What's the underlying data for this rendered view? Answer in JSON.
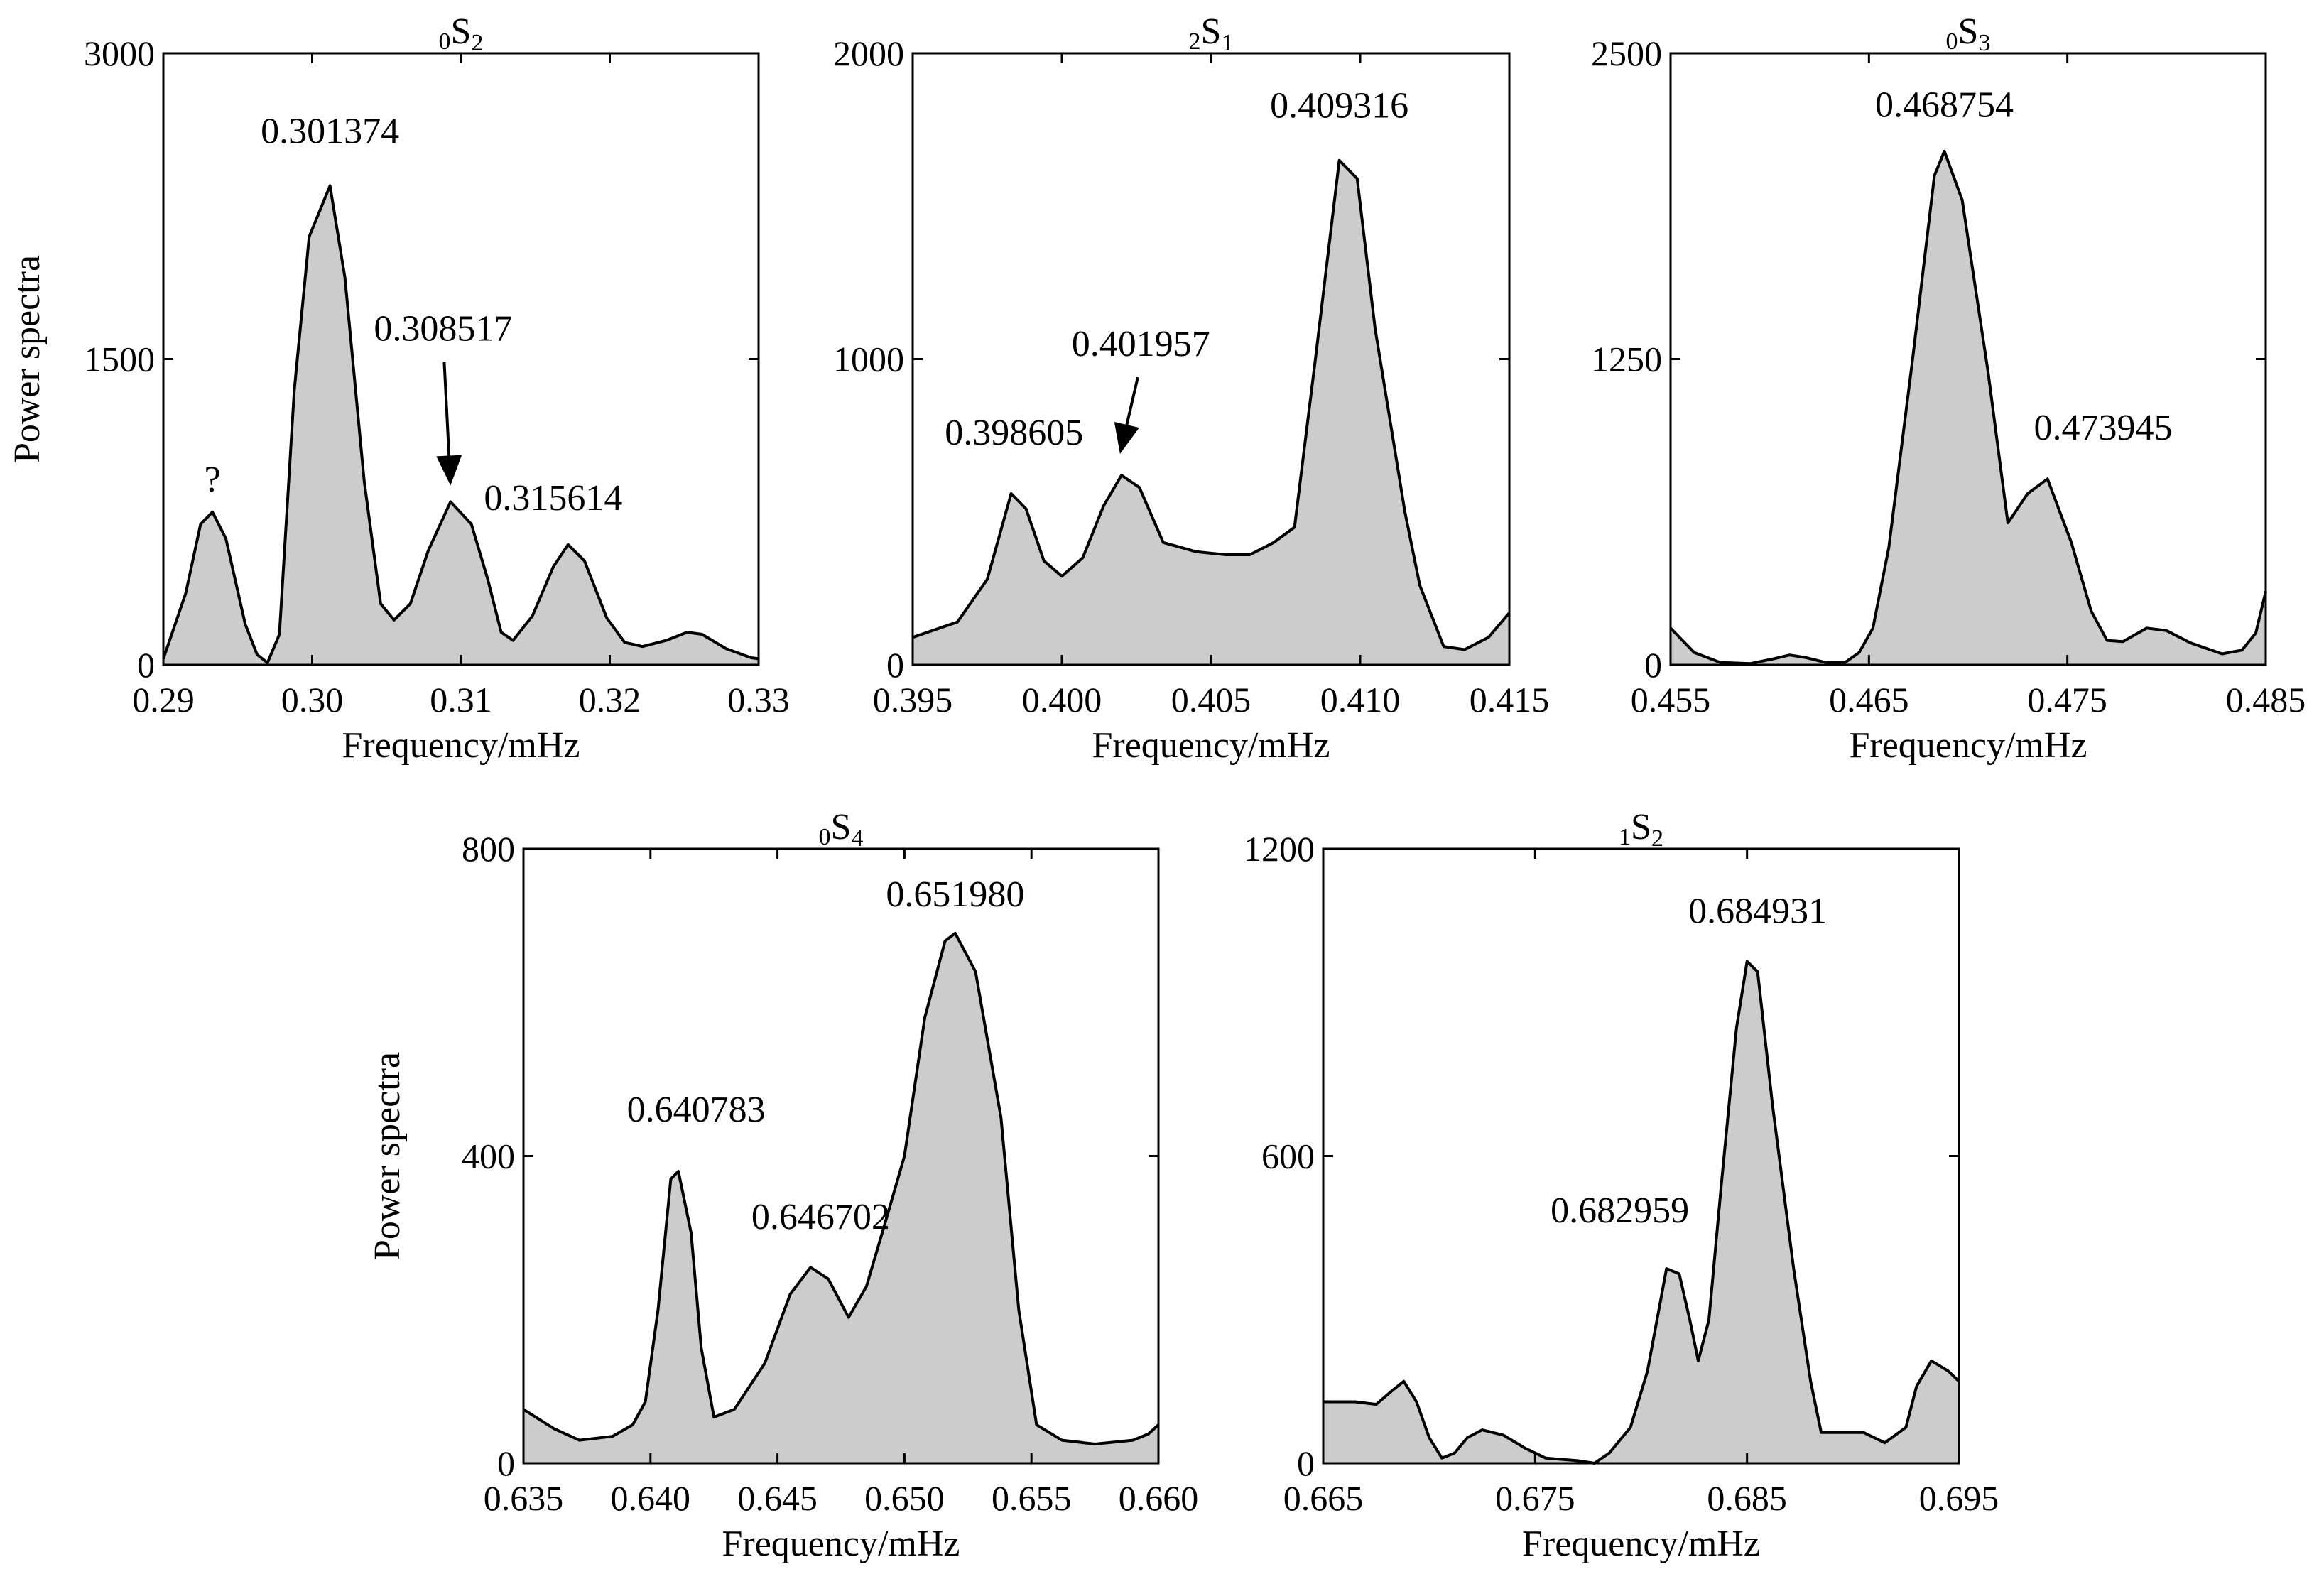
{
  "chart_data": [
    {
      "type": "area",
      "title": {
        "prefix": "0",
        "main": "S",
        "suffix": "2"
      },
      "xlabel": "Frequency/mHz",
      "ylabel": "Power spectra",
      "xlim": [
        0.29,
        0.33
      ],
      "ylim": [
        0,
        3000
      ],
      "xticks": [
        {
          "v": 0.29,
          "label": "0.29"
        },
        {
          "v": 0.3,
          "label": "0.30"
        },
        {
          "v": 0.31,
          "label": "0.31"
        },
        {
          "v": 0.32,
          "label": "0.32"
        },
        {
          "v": 0.33,
          "label": "0.33"
        }
      ],
      "yticks": [
        {
          "v": 0,
          "label": "0"
        },
        {
          "v": 1500,
          "label": "1500"
        },
        {
          "v": 3000,
          "label": "3000"
        }
      ],
      "points": [
        [
          0.29,
          30
        ],
        [
          0.2915,
          350
        ],
        [
          0.2925,
          690
        ],
        [
          0.2933,
          750
        ],
        [
          0.2942,
          620
        ],
        [
          0.2955,
          200
        ],
        [
          0.2963,
          50
        ],
        [
          0.297,
          10
        ],
        [
          0.2978,
          150
        ],
        [
          0.2988,
          1350
        ],
        [
          0.2998,
          2100
        ],
        [
          0.3012,
          2350
        ],
        [
          0.3022,
          1900
        ],
        [
          0.3035,
          900
        ],
        [
          0.3046,
          300
        ],
        [
          0.3055,
          220
        ],
        [
          0.3066,
          300
        ],
        [
          0.3078,
          560
        ],
        [
          0.3093,
          800
        ],
        [
          0.3107,
          690
        ],
        [
          0.3118,
          420
        ],
        [
          0.3127,
          160
        ],
        [
          0.3135,
          120
        ],
        [
          0.3148,
          240
        ],
        [
          0.3162,
          480
        ],
        [
          0.3172,
          590
        ],
        [
          0.3183,
          510
        ],
        [
          0.3198,
          230
        ],
        [
          0.321,
          110
        ],
        [
          0.3222,
          90
        ],
        [
          0.3238,
          120
        ],
        [
          0.3252,
          160
        ],
        [
          0.3262,
          150
        ],
        [
          0.3278,
          80
        ],
        [
          0.3295,
          35
        ],
        [
          0.33,
          30
        ]
      ],
      "annotations": [
        {
          "text": "?",
          "x": 0.2933,
          "y": 850,
          "arrow": false
        },
        {
          "text": "0.301374",
          "x": 0.3012,
          "y": 2560,
          "arrow": false
        },
        {
          "text": "0.308517",
          "x": 0.3088,
          "y": 1590,
          "arrow": true,
          "arrow_to": [
            0.3093,
            880
          ]
        },
        {
          "text": "0.315614",
          "x": 0.3162,
          "y": 760,
          "arrow": false
        }
      ]
    },
    {
      "type": "area",
      "title": {
        "prefix": "2",
        "main": "S",
        "suffix": "1"
      },
      "xlabel": "Frequency/mHz",
      "ylabel": "",
      "xlim": [
        0.395,
        0.415
      ],
      "ylim": [
        0,
        2000
      ],
      "xticks": [
        {
          "v": 0.395,
          "label": "0.395"
        },
        {
          "v": 0.4,
          "label": "0.400"
        },
        {
          "v": 0.405,
          "label": "0.405"
        },
        {
          "v": 0.41,
          "label": "0.410"
        },
        {
          "v": 0.415,
          "label": "0.415"
        }
      ],
      "yticks": [
        {
          "v": 0,
          "label": "0"
        },
        {
          "v": 1000,
          "label": "1000"
        },
        {
          "v": 2000,
          "label": "2000"
        }
      ],
      "points": [
        [
          0.395,
          90
        ],
        [
          0.3965,
          140
        ],
        [
          0.3975,
          280
        ],
        [
          0.3983,
          560
        ],
        [
          0.3988,
          510
        ],
        [
          0.3994,
          340
        ],
        [
          0.4,
          290
        ],
        [
          0.4007,
          350
        ],
        [
          0.4014,
          520
        ],
        [
          0.402,
          620
        ],
        [
          0.4026,
          580
        ],
        [
          0.4034,
          400
        ],
        [
          0.4045,
          370
        ],
        [
          0.4055,
          360
        ],
        [
          0.4063,
          360
        ],
        [
          0.4071,
          400
        ],
        [
          0.4078,
          450
        ],
        [
          0.4085,
          1000
        ],
        [
          0.4093,
          1650
        ],
        [
          0.4099,
          1590
        ],
        [
          0.4105,
          1100
        ],
        [
          0.4115,
          500
        ],
        [
          0.412,
          260
        ],
        [
          0.4128,
          60
        ],
        [
          0.4135,
          50
        ],
        [
          0.4143,
          90
        ],
        [
          0.415,
          170
        ]
      ],
      "annotations": [
        {
          "text": "0.398605",
          "x": 0.3984,
          "y": 720,
          "arrow": false
        },
        {
          "text": "0.401957",
          "x": 0.40265,
          "y": 1010,
          "arrow": true,
          "arrow_to": [
            0.40195,
            690
          ]
        },
        {
          "text": "0.409316",
          "x": 0.4093,
          "y": 1790,
          "arrow": false
        }
      ]
    },
    {
      "type": "area",
      "title": {
        "prefix": "0",
        "main": "S",
        "suffix": "3"
      },
      "xlabel": "Frequency/mHz",
      "ylabel": "",
      "xlim": [
        0.455,
        0.485
      ],
      "ylim": [
        0,
        2500
      ],
      "xticks": [
        {
          "v": 0.455,
          "label": "0.455"
        },
        {
          "v": 0.465,
          "label": "0.465"
        },
        {
          "v": 0.475,
          "label": "0.475"
        },
        {
          "v": 0.485,
          "label": "0.485"
        }
      ],
      "yticks": [
        {
          "v": 0,
          "label": "0"
        },
        {
          "v": 1250,
          "label": "1250"
        },
        {
          "v": 2500,
          "label": "2500"
        }
      ],
      "points": [
        [
          0.455,
          150
        ],
        [
          0.4562,
          50
        ],
        [
          0.4575,
          10
        ],
        [
          0.459,
          5
        ],
        [
          0.4602,
          25
        ],
        [
          0.461,
          40
        ],
        [
          0.4618,
          30
        ],
        [
          0.4628,
          10
        ],
        [
          0.4638,
          10
        ],
        [
          0.4645,
          50
        ],
        [
          0.4652,
          150
        ],
        [
          0.466,
          480
        ],
        [
          0.4672,
          1250
        ],
        [
          0.4683,
          2000
        ],
        [
          0.4688,
          2100
        ],
        [
          0.4697,
          1900
        ],
        [
          0.471,
          1200
        ],
        [
          0.472,
          580
        ],
        [
          0.473,
          700
        ],
        [
          0.474,
          760
        ],
        [
          0.4752,
          500
        ],
        [
          0.4762,
          220
        ],
        [
          0.477,
          100
        ],
        [
          0.4778,
          95
        ],
        [
          0.479,
          150
        ],
        [
          0.48,
          140
        ],
        [
          0.4812,
          90
        ],
        [
          0.4828,
          45
        ],
        [
          0.4838,
          60
        ],
        [
          0.4845,
          130
        ],
        [
          0.485,
          300
        ]
      ],
      "annotations": [
        {
          "text": "0.468754",
          "x": 0.4688,
          "y": 2240,
          "arrow": false
        },
        {
          "text": "0.473945",
          "x": 0.4768,
          "y": 920,
          "arrow": false
        }
      ]
    },
    {
      "type": "area",
      "title": {
        "prefix": "0",
        "main": "S",
        "suffix": "4"
      },
      "xlabel": "Frequency/mHz",
      "ylabel": "Power spectra",
      "xlim": [
        0.635,
        0.66
      ],
      "ylim": [
        0,
        800
      ],
      "xticks": [
        {
          "v": 0.635,
          "label": "0.635"
        },
        {
          "v": 0.64,
          "label": "0.640"
        },
        {
          "v": 0.645,
          "label": "0.645"
        },
        {
          "v": 0.65,
          "label": "0.650"
        },
        {
          "v": 0.655,
          "label": "0.655"
        },
        {
          "v": 0.66,
          "label": "0.660"
        }
      ],
      "yticks": [
        {
          "v": 0,
          "label": "0"
        },
        {
          "v": 400,
          "label": "400"
        },
        {
          "v": 800,
          "label": "800"
        }
      ],
      "points": [
        [
          0.635,
          70
        ],
        [
          0.6362,
          45
        ],
        [
          0.6372,
          30
        ],
        [
          0.6385,
          35
        ],
        [
          0.6393,
          50
        ],
        [
          0.6398,
          80
        ],
        [
          0.6403,
          200
        ],
        [
          0.6408,
          370
        ],
        [
          0.6411,
          380
        ],
        [
          0.6416,
          300
        ],
        [
          0.642,
          150
        ],
        [
          0.6425,
          60
        ],
        [
          0.6433,
          70
        ],
        [
          0.6445,
          130
        ],
        [
          0.6455,
          220
        ],
        [
          0.6463,
          255
        ],
        [
          0.647,
          240
        ],
        [
          0.6478,
          190
        ],
        [
          0.6485,
          230
        ],
        [
          0.6493,
          320
        ],
        [
          0.65,
          400
        ],
        [
          0.6508,
          580
        ],
        [
          0.6516,
          680
        ],
        [
          0.652,
          690
        ],
        [
          0.6528,
          640
        ],
        [
          0.6538,
          450
        ],
        [
          0.6545,
          200
        ],
        [
          0.6552,
          50
        ],
        [
          0.6562,
          30
        ],
        [
          0.6575,
          25
        ],
        [
          0.659,
          30
        ],
        [
          0.6596,
          38
        ],
        [
          0.66,
          50
        ]
      ],
      "annotations": [
        {
          "text": "0.640783",
          "x": 0.6418,
          "y": 445,
          "arrow": false
        },
        {
          "text": "0.646702",
          "x": 0.6467,
          "y": 305,
          "arrow": false
        },
        {
          "text": "0.651980",
          "x": 0.652,
          "y": 725,
          "arrow": false
        }
      ]
    },
    {
      "type": "area",
      "title": {
        "prefix": "1",
        "main": "S",
        "suffix": "2"
      },
      "xlabel": "Frequency/mHz",
      "ylabel": "",
      "xlim": [
        0.665,
        0.695
      ],
      "ylim": [
        0,
        1200
      ],
      "xticks": [
        {
          "v": 0.665,
          "label": "0.665"
        },
        {
          "v": 0.675,
          "label": "0.675"
        },
        {
          "v": 0.685,
          "label": "0.685"
        },
        {
          "v": 0.695,
          "label": "0.695"
        }
      ],
      "yticks": [
        {
          "v": 0,
          "label": "0"
        },
        {
          "v": 600,
          "label": "600"
        },
        {
          "v": 1200,
          "label": "1200"
        }
      ],
      "points": [
        [
          0.665,
          120
        ],
        [
          0.6665,
          120
        ],
        [
          0.6675,
          115
        ],
        [
          0.6682,
          140
        ],
        [
          0.6688,
          160
        ],
        [
          0.6694,
          120
        ],
        [
          0.67,
          50
        ],
        [
          0.6706,
          10
        ],
        [
          0.6712,
          20
        ],
        [
          0.6718,
          50
        ],
        [
          0.6725,
          65
        ],
        [
          0.6735,
          55
        ],
        [
          0.6745,
          30
        ],
        [
          0.6755,
          10
        ],
        [
          0.677,
          5
        ],
        [
          0.6778,
          0
        ],
        [
          0.6785,
          20
        ],
        [
          0.6795,
          70
        ],
        [
          0.6803,
          180
        ],
        [
          0.6812,
          380
        ],
        [
          0.6818,
          370
        ],
        [
          0.6823,
          280
        ],
        [
          0.6827,
          200
        ],
        [
          0.6832,
          280
        ],
        [
          0.6838,
          550
        ],
        [
          0.6845,
          850
        ],
        [
          0.685,
          980
        ],
        [
          0.6855,
          960
        ],
        [
          0.6862,
          700
        ],
        [
          0.6872,
          380
        ],
        [
          0.688,
          160
        ],
        [
          0.6885,
          60
        ],
        [
          0.6895,
          60
        ],
        [
          0.6905,
          60
        ],
        [
          0.6915,
          40
        ],
        [
          0.6925,
          70
        ],
        [
          0.693,
          150
        ],
        [
          0.6937,
          200
        ],
        [
          0.6945,
          180
        ],
        [
          0.695,
          160
        ]
      ],
      "annotations": [
        {
          "text": "0.682959",
          "x": 0.679,
          "y": 470,
          "arrow": false
        },
        {
          "text": "0.684931",
          "x": 0.6855,
          "y": 1055,
          "arrow": false
        }
      ]
    }
  ]
}
